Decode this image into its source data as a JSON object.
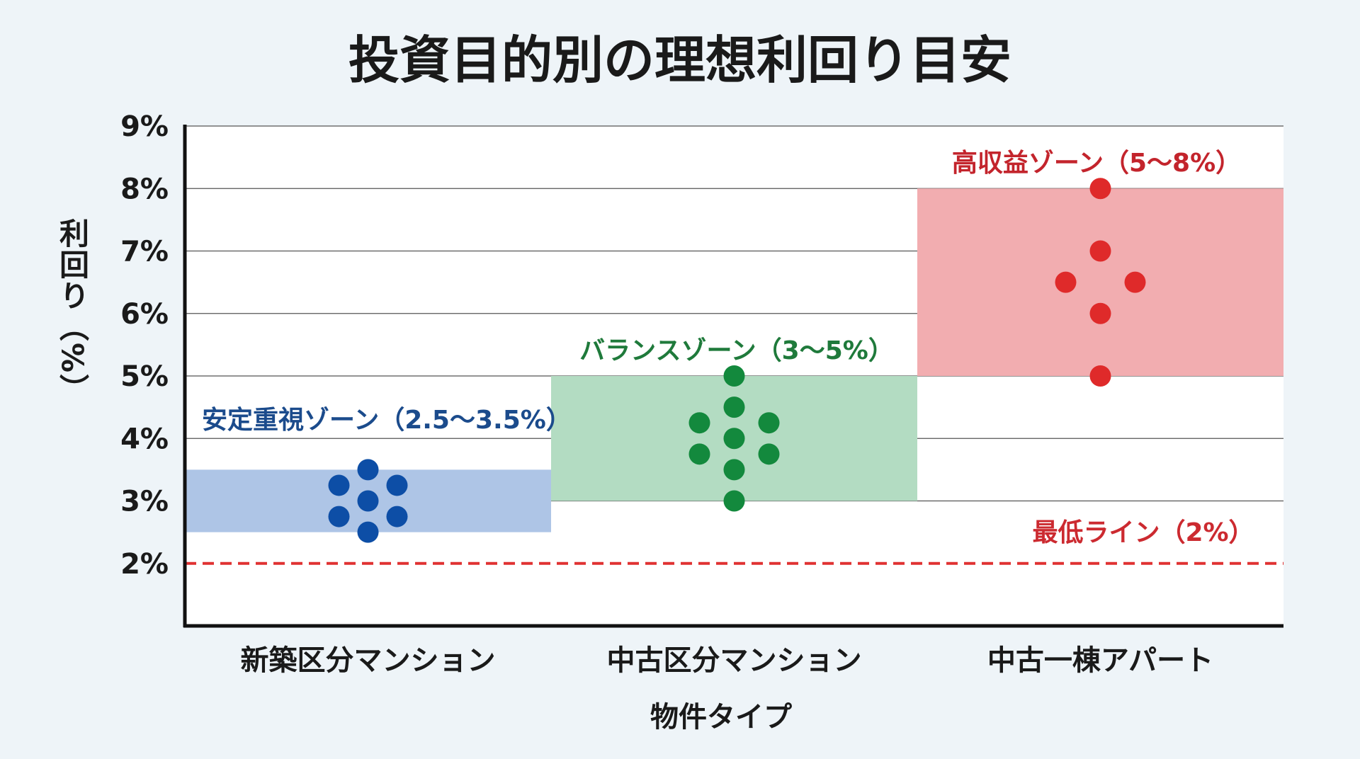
{
  "chart_data": {
    "type": "scatter",
    "title": "投資目的別の理想利回り目安",
    "xlabel": "物件タイプ",
    "ylabel": "利回り（%）",
    "ylim": [
      1,
      9
    ],
    "yticks": [
      "2%",
      "3%",
      "4%",
      "5%",
      "6%",
      "7%",
      "8%",
      "9%"
    ],
    "grid": true,
    "categories": [
      "新築区分マンション",
      "中古区分マンション",
      "中古一棟アパート"
    ],
    "zones": [
      {
        "label": "安定重視ゾーン（2.5〜3.5%）",
        "range": [
          2.5,
          3.5
        ],
        "fill": "#aec5e6",
        "dot": "#0d4ea6",
        "text": "#1b4b8c",
        "points": [
          3.5,
          3.25,
          3.25,
          3.0,
          2.75,
          2.75,
          2.5
        ]
      },
      {
        "label": "バランスゾーン（3〜5%）",
        "range": [
          3,
          5
        ],
        "fill": "#b3dcc2",
        "dot": "#13893d",
        "text": "#1f7a3b",
        "points": [
          5.0,
          4.5,
          4.25,
          4.25,
          4.0,
          3.75,
          3.75,
          3.5,
          3.0
        ]
      },
      {
        "label": "高収益ゾーン（5〜8%）",
        "range": [
          5,
          8
        ],
        "fill": "#f2adb0",
        "dot": "#df2a2a",
        "text": "#c3242c",
        "points": [
          8.0,
          7.0,
          6.5,
          6.5,
          6.0,
          5.0
        ]
      }
    ],
    "reference_line": {
      "label": "最低ライン（2%）",
      "value": 2,
      "color": "#e03232"
    }
  }
}
